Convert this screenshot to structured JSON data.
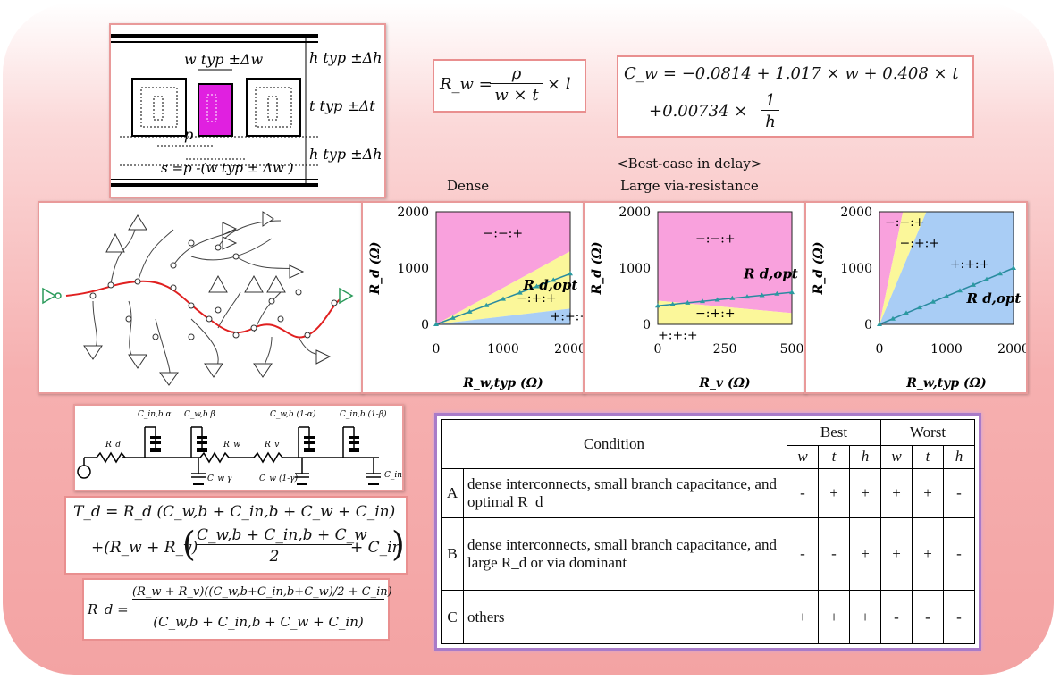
{
  "cross_section": {
    "w_label": "w typ ±Δw",
    "h_top_label": "h typ ±Δh",
    "t_label": "t typ ±Δt",
    "h_bot_label": "h typ ±Δh",
    "p_label": "p",
    "s_label": "s =p -(w typ ± Δw )",
    "colors": {
      "wire": "#e020e0",
      "frame": "#000000"
    }
  },
  "formula_rw": {
    "lhs": "R_w =",
    "num": "ρ",
    "den": "w × t",
    "rhs": "× l"
  },
  "formula_cw": {
    "line1": "C_w = −0.0814 + 1.017 × w + 0.408 × t",
    "line2": "+0.00734 ×",
    "num": "1",
    "den": "h"
  },
  "captions": {
    "dense": "Dense",
    "best_case": "<Best-case in delay>",
    "large_via": "Large via-resistance"
  },
  "charts": [
    {
      "name": "dense",
      "ylabel": "R_d (Ω)",
      "xlabel": "R_w,typ (Ω)",
      "xlim": [
        0,
        2000
      ],
      "ylim": [
        0,
        2000
      ],
      "xticks": [
        "0",
        "1000",
        "2000"
      ],
      "yticks": [
        "0",
        "1000",
        "2000"
      ],
      "regions": [
        {
          "label": "−:−:+",
          "color": "#f9a1dd"
        },
        {
          "label": "−:+:+",
          "color": "#fbf79a"
        },
        {
          "label": "+:+:+",
          "color": "#a9cdf5"
        }
      ],
      "opt_label": "R d,opt"
    },
    {
      "name": "large-via",
      "ylabel": "R_d (Ω)",
      "xlabel": "R_v (Ω)",
      "xlim": [
        0,
        500
      ],
      "ylim": [
        0,
        2000
      ],
      "xticks": [
        "0",
        "250",
        "500"
      ],
      "yticks": [
        "0",
        "1000",
        "2000"
      ],
      "regions": [
        {
          "label": "−:−:+",
          "color": "#f9a1dd"
        },
        {
          "label": "−:+:+",
          "color": "#fbf79a"
        },
        {
          "label": "+:+:+",
          "color": "#a9cdf5"
        }
      ],
      "opt_label": "R d,opt"
    },
    {
      "name": "other",
      "ylabel": "R_d (Ω)",
      "xlabel": "R_w,typ (Ω)",
      "xlim": [
        0,
        2000
      ],
      "ylim": [
        0,
        2000
      ],
      "xticks": [
        "0",
        "1000",
        "2000"
      ],
      "yticks": [
        "0",
        "1000",
        "2000"
      ],
      "regions": [
        {
          "label": "−:−:+",
          "color": "#f9a1dd"
        },
        {
          "label": "−:+:+",
          "color": "#fbf79a"
        },
        {
          "label": "+:+:+",
          "color": "#a9cdf5"
        }
      ],
      "opt_label": "R d,opt"
    }
  ],
  "circuit": {
    "labels": [
      "C_in,b α",
      "C_w,b β",
      "C_w,b (1-α)",
      "C_in,b (1-β)",
      "R_d",
      "R_w",
      "R_v",
      "C_w γ",
      "C_w (1-γ)",
      "C_in"
    ]
  },
  "formula_td": {
    "line1": "T_d = R_d (C_w,b + C_in,b + C_w + C_in)",
    "line2_pre": "+(R_w + R_v)",
    "line2_num": "C_w,b + C_in,b + C_w",
    "line2_den": "2",
    "line2_post": "+ C_in"
  },
  "formula_rd": {
    "lhs": "R_d =",
    "num": "(R_w + R_v)((C_w,b+C_in,b+C_w)/2 + C_in)",
    "den": "(C_w,b + C_in,b + C_w + C_in)"
  },
  "table": {
    "header_condition": "Condition",
    "header_best": "Best",
    "header_worst": "Worst",
    "subheaders": [
      "w",
      "t",
      "h",
      "w",
      "t",
      "h"
    ],
    "rows": [
      {
        "id": "A",
        "text": "dense interconnects, small branch capacitance, and optimal R_d",
        "best": [
          "-",
          "+",
          "+"
        ],
        "worst": [
          "+",
          "+",
          "-"
        ]
      },
      {
        "id": "B",
        "text": "dense interconnects, small branch capacitance, and large R_d or via dominant",
        "best": [
          "-",
          "-",
          "+"
        ],
        "worst": [
          "+",
          "+",
          "-"
        ]
      },
      {
        "id": "C",
        "text": "others",
        "best": [
          "+",
          "+",
          "+"
        ],
        "worst": [
          "-",
          "-",
          "-"
        ]
      }
    ]
  }
}
